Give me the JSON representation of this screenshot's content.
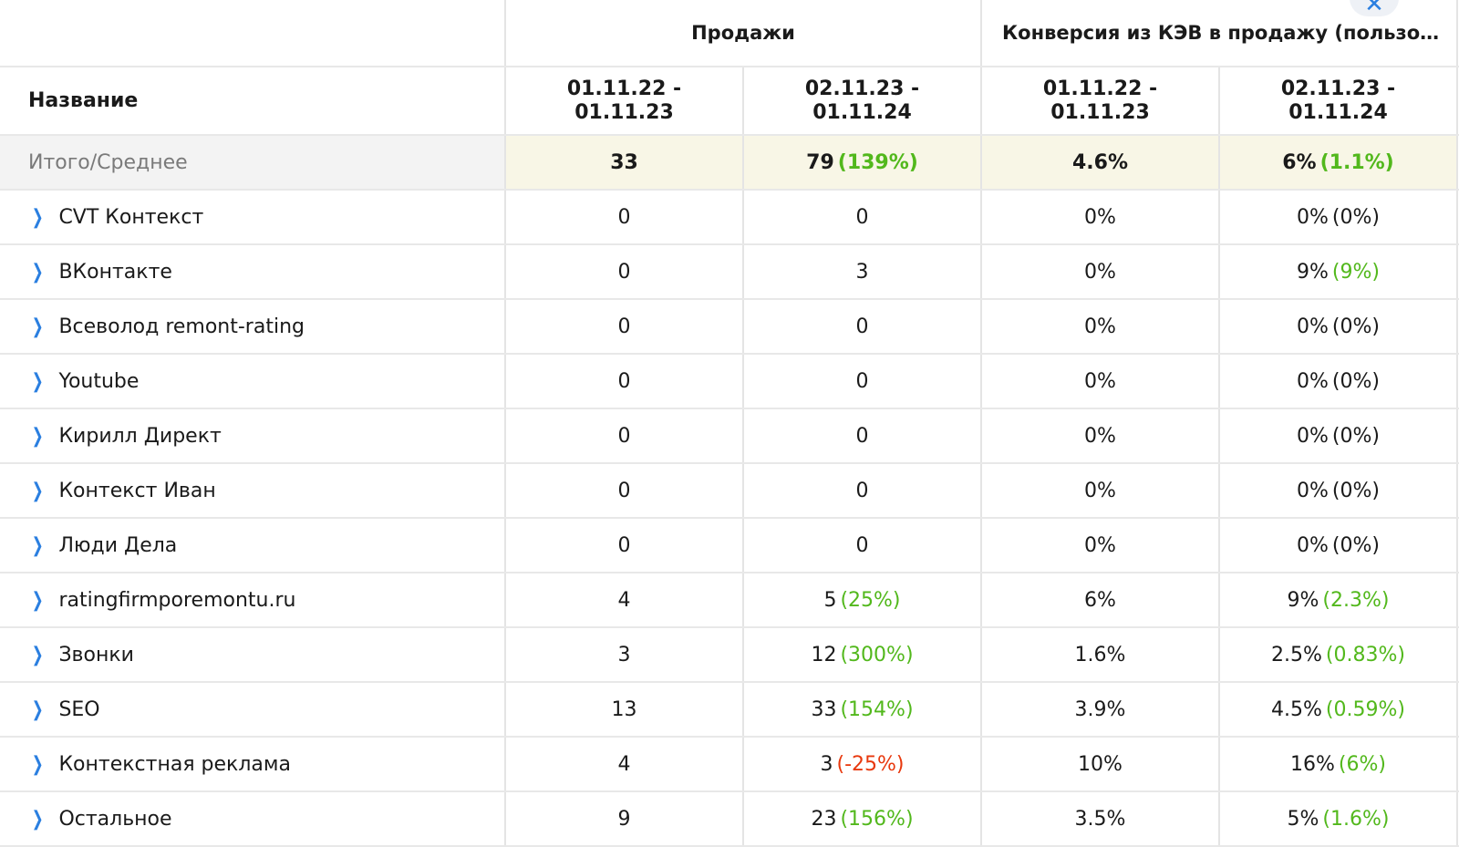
{
  "header": {
    "group_sales": "Продажи",
    "group_conversion": "Конверсия из КЭВ в продажу (пользовате...",
    "name_col": "Название",
    "periods": [
      {
        "line1": "01.11.22 -",
        "line2": "01.11.23"
      },
      {
        "line1": "02.11.23 -",
        "line2": "01.11.24"
      },
      {
        "line1": "01.11.22 -",
        "line2": "01.11.23"
      },
      {
        "line1": "02.11.23 -",
        "line2": "01.11.24"
      }
    ]
  },
  "total": {
    "name": "Итого/Среднее",
    "sales_prev": "33",
    "sales_cur": "79",
    "sales_delta": "(139%)",
    "conv_prev": "4.6%",
    "conv_cur": "6%",
    "conv_delta": "(1.1%)"
  },
  "rows": [
    {
      "name": "CVT Контекст",
      "sales_prev": "0",
      "sales_cur": "0",
      "sales_delta": "",
      "conv_prev": "0%",
      "conv_cur": "0%",
      "conv_delta": "(0%)"
    },
    {
      "name": "ВКонтакте",
      "sales_prev": "0",
      "sales_cur": "3",
      "sales_delta": "",
      "conv_prev": "0%",
      "conv_cur": "9%",
      "conv_delta": "(9%)"
    },
    {
      "name": "Всеволод remont-rating",
      "sales_prev": "0",
      "sales_cur": "0",
      "sales_delta": "",
      "conv_prev": "0%",
      "conv_cur": "0%",
      "conv_delta": "(0%)"
    },
    {
      "name": "Youtube",
      "sales_prev": "0",
      "sales_cur": "0",
      "sales_delta": "",
      "conv_prev": "0%",
      "conv_cur": "0%",
      "conv_delta": "(0%)"
    },
    {
      "name": "Кирилл Директ",
      "sales_prev": "0",
      "sales_cur": "0",
      "sales_delta": "",
      "conv_prev": "0%",
      "conv_cur": "0%",
      "conv_delta": "(0%)"
    },
    {
      "name": "Контекст Иван",
      "sales_prev": "0",
      "sales_cur": "0",
      "sales_delta": "",
      "conv_prev": "0%",
      "conv_cur": "0%",
      "conv_delta": "(0%)"
    },
    {
      "name": "Люди Дела",
      "sales_prev": "0",
      "sales_cur": "0",
      "sales_delta": "",
      "conv_prev": "0%",
      "conv_cur": "0%",
      "conv_delta": "(0%)"
    },
    {
      "name": "ratingfirmporemontu.ru",
      "sales_prev": "4",
      "sales_cur": "5",
      "sales_delta": "(25%)",
      "conv_prev": "6%",
      "conv_cur": "9%",
      "conv_delta": "(2.3%)"
    },
    {
      "name": "Звонки",
      "sales_prev": "3",
      "sales_cur": "12",
      "sales_delta": "(300%)",
      "conv_prev": "1.6%",
      "conv_cur": "2.5%",
      "conv_delta": "(0.83%)"
    },
    {
      "name": "SEO",
      "sales_prev": "13",
      "sales_cur": "33",
      "sales_delta": "(154%)",
      "conv_prev": "3.9%",
      "conv_cur": "4.5%",
      "conv_delta": "(0.59%)"
    },
    {
      "name": "Контекстная реклама",
      "sales_prev": "4",
      "sales_cur": "3",
      "sales_delta": "(-25%)",
      "conv_prev": "10%",
      "conv_cur": "16%",
      "conv_delta": "(6%)"
    },
    {
      "name": "Остальное",
      "sales_prev": "9",
      "sales_cur": "23",
      "sales_delta": "(156%)",
      "conv_prev": "3.5%",
      "conv_cur": "5%",
      "conv_delta": "(1.6%)"
    }
  ],
  "icons": {
    "expand": "chevron-right-icon",
    "close": "close-icon"
  },
  "colors": {
    "positive": "#52b81c",
    "negative": "#e8380d",
    "chevron": "#2b7fe0",
    "total_bg": "#f8f6e6"
  }
}
